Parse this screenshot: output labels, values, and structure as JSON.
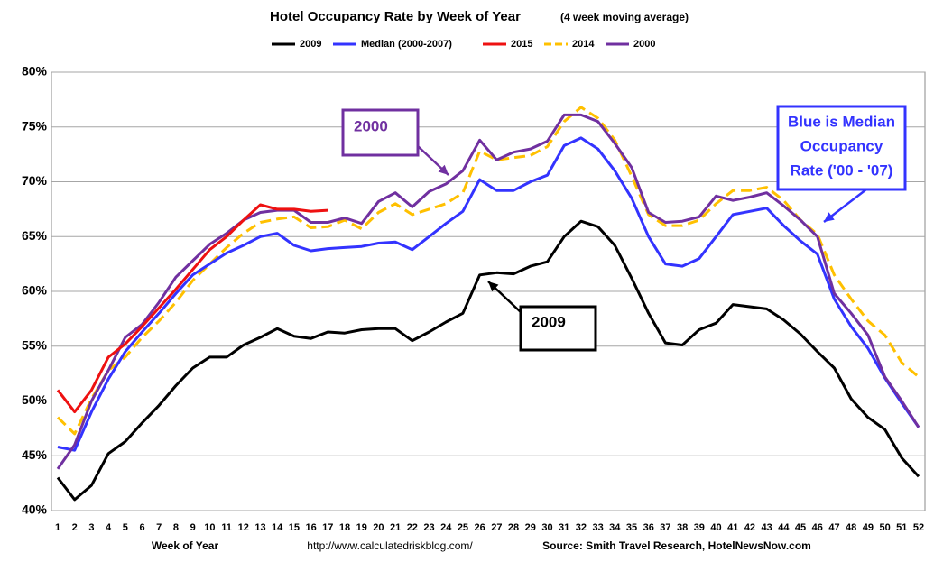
{
  "chart_data": {
    "type": "line",
    "title": "Hotel Occupancy Rate by  Week of Year",
    "subtitle": "(4 week moving average)",
    "x_label": "Week of Year",
    "url_note": "http://www.calculatedriskblog.com/",
    "source": "Source: Smith Travel Research, HotelNewsNow.com",
    "categories": [
      "1",
      "2",
      "3",
      "4",
      "5",
      "6",
      "7",
      "8",
      "9",
      "10",
      "11",
      "12",
      "13",
      "14",
      "15",
      "16",
      "17",
      "18",
      "19",
      "20",
      "21",
      "22",
      "23",
      "24",
      "25",
      "26",
      "27",
      "28",
      "29",
      "30",
      "31",
      "32",
      "33",
      "34",
      "35",
      "36",
      "37",
      "38",
      "39",
      "40",
      "41",
      "42",
      "43",
      "44",
      "45",
      "46",
      "47",
      "48",
      "49",
      "50",
      "51",
      "52"
    ],
    "ylim": [
      40,
      80
    ],
    "yticks": [
      {
        "value": 40,
        "label": "40%"
      },
      {
        "value": 45,
        "label": "45%"
      },
      {
        "value": 50,
        "label": "50%"
      },
      {
        "value": 55,
        "label": "55%"
      },
      {
        "value": 60,
        "label": "60%"
      },
      {
        "value": 65,
        "label": "65%"
      },
      {
        "value": 70,
        "label": "70%"
      },
      {
        "value": 75,
        "label": "75%"
      },
      {
        "value": 80,
        "label": "80%"
      }
    ],
    "grid": true,
    "legend": "top",
    "series": [
      {
        "name": "2009",
        "color": "#000000",
        "dashed": false,
        "values": [
          43.0,
          41.0,
          42.3,
          45.2,
          46.3,
          48.0,
          49.6,
          51.4,
          53.0,
          54.0,
          54.0,
          55.1,
          55.8,
          56.6,
          55.9,
          55.7,
          56.3,
          56.2,
          56.5,
          56.6,
          56.6,
          55.5,
          56.3,
          57.2,
          58.0,
          61.5,
          61.7,
          61.6,
          62.3,
          62.7,
          65.0,
          66.4,
          65.9,
          64.2,
          61.2,
          58.0,
          55.3,
          55.1,
          56.5,
          57.1,
          58.8,
          58.6,
          58.4,
          57.4,
          56.1,
          54.5,
          53.0,
          50.2,
          48.5,
          47.4,
          44.8,
          43.1
        ]
      },
      {
        "name": "Median (2000-2007)",
        "color": "#3333ff",
        "dashed": false,
        "values": [
          45.8,
          45.5,
          49.0,
          52.0,
          54.5,
          56.3,
          58.0,
          59.8,
          61.5,
          62.5,
          63.5,
          64.2,
          65.0,
          65.3,
          64.2,
          63.7,
          63.9,
          64.0,
          64.1,
          64.4,
          64.5,
          63.8,
          65.0,
          66.2,
          67.3,
          70.2,
          69.2,
          69.2,
          70.0,
          70.6,
          73.3,
          74.0,
          73.0,
          71.0,
          68.5,
          65.0,
          62.5,
          62.3,
          63.0,
          65.0,
          67.0,
          67.3,
          67.6,
          66.0,
          64.6,
          63.4,
          59.3,
          56.8,
          54.8,
          52.1,
          49.8,
          47.6
        ]
      },
      {
        "name": "2015",
        "color": "#ee1111",
        "dashed": false,
        "values": [
          51.0,
          49.0,
          51.0,
          54.0,
          55.2,
          56.8,
          58.5,
          60.2,
          62.0,
          63.8,
          65.0,
          66.5,
          67.9,
          67.5,
          67.5,
          67.3,
          67.4,
          null,
          null,
          null,
          null,
          null,
          null,
          null,
          null,
          null,
          null,
          null,
          null,
          null,
          null,
          null,
          null,
          null,
          null,
          null,
          null,
          null,
          null,
          null,
          null,
          null,
          null,
          null,
          null,
          null,
          null,
          null,
          null,
          null,
          null,
          null
        ]
      },
      {
        "name": "2014",
        "color": "#ffc000",
        "dashed": true,
        "values": [
          48.5,
          47.0,
          50.2,
          52.8,
          54.0,
          55.8,
          57.3,
          59.0,
          61.0,
          62.5,
          64.0,
          65.3,
          66.3,
          66.6,
          66.8,
          65.8,
          65.9,
          66.5,
          65.7,
          67.2,
          68.0,
          67.0,
          67.5,
          68.0,
          69.0,
          72.8,
          72.0,
          72.2,
          72.4,
          73.2,
          75.5,
          76.8,
          75.8,
          73.8,
          70.5,
          67.0,
          66.0,
          66.0,
          66.5,
          68.0,
          69.2,
          69.2,
          69.5,
          68.3,
          66.5,
          65.2,
          61.5,
          59.3,
          57.3,
          56.0,
          53.5,
          52.2
        ]
      },
      {
        "name": "2000",
        "color": "#7030a0",
        "dashed": false,
        "values": [
          43.8,
          46.0,
          50.0,
          52.8,
          55.8,
          57.0,
          59.0,
          61.3,
          62.8,
          64.3,
          65.3,
          66.5,
          67.2,
          67.4,
          67.4,
          66.3,
          66.3,
          66.7,
          66.2,
          68.2,
          69.0,
          67.7,
          69.1,
          69.8,
          71.0,
          73.8,
          72.0,
          72.7,
          73.0,
          73.7,
          76.1,
          76.1,
          75.5,
          73.5,
          71.3,
          67.2,
          66.3,
          66.4,
          66.8,
          68.7,
          68.3,
          68.6,
          69.0,
          67.8,
          66.5,
          65.0,
          59.8,
          58.0,
          56.0,
          52.2,
          50.0,
          47.6
        ]
      }
    ],
    "annotations": [
      {
        "text": [
          "2000"
        ],
        "color": "#7030a0"
      },
      {
        "text": [
          "2009"
        ],
        "color": "#000000"
      },
      {
        "text": [
          "Blue is Median",
          "Occupancy",
          "Rate ('00 - '07)"
        ],
        "color": "#3333ff"
      }
    ]
  }
}
